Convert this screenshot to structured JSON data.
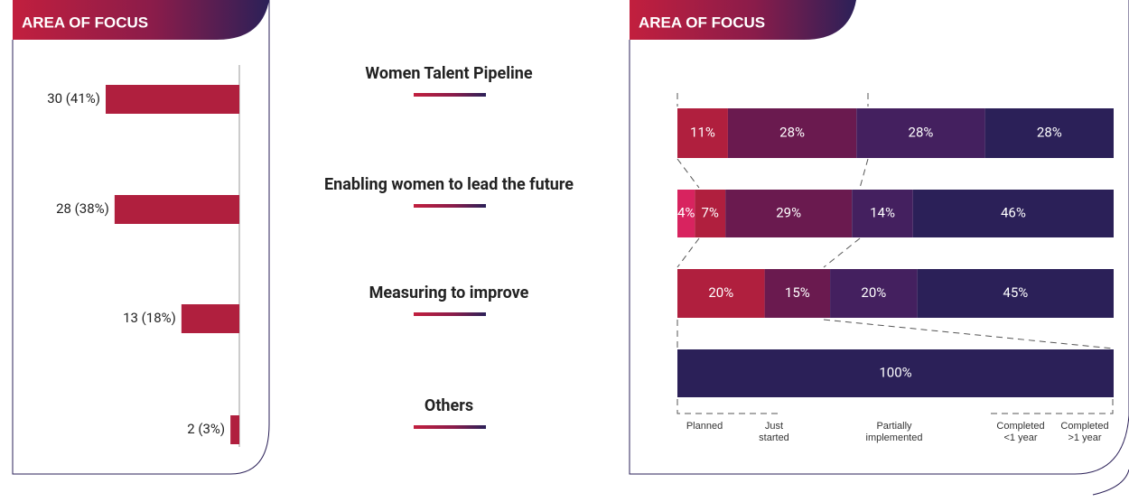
{
  "chart_data": [
    {
      "type": "bar",
      "orientation": "horizontal",
      "title": "AREA OF FOCUS",
      "categories": [
        "Women Talent Pipeline",
        "Enabling women to lead the future",
        "Measuring to improve",
        "Others"
      ],
      "values": [
        30,
        28,
        13,
        2
      ],
      "value_labels": [
        "30 (41%)",
        "28 (38%)",
        "13 (18%)",
        "2 (3%)"
      ],
      "color": "#b01f3e"
    },
    {
      "type": "stacked-bar",
      "orientation": "horizontal",
      "title": "AREA OF FOCUS",
      "series": [
        {
          "name": "Planned",
          "color": "#d8235f",
          "values": [
            null,
            4,
            null,
            null
          ],
          "value_labels": [
            null,
            "4%",
            null,
            null
          ]
        },
        {
          "name": "Just started",
          "color": "#b01f3e",
          "values": [
            11,
            7,
            20,
            null
          ],
          "value_labels": [
            "11%",
            "7%",
            "20%",
            null
          ]
        },
        {
          "name": "Partially implemented",
          "color": "#6a1a4f",
          "values": [
            28,
            29,
            15,
            null
          ],
          "value_labels": [
            "28%",
            "29%",
            "15%",
            null
          ]
        },
        {
          "name": "Completed <1 year",
          "color": "#44205f",
          "values": [
            28,
            14,
            20,
            null
          ],
          "value_labels": [
            "28%",
            "14%",
            "20%",
            null
          ]
        },
        {
          "name": "Completed >1 year",
          "color": "#2b2058",
          "values": [
            28,
            46,
            45,
            100
          ],
          "value_labels": [
            "28%",
            "46%",
            "45%",
            "100%"
          ]
        }
      ]
    }
  ]
}
